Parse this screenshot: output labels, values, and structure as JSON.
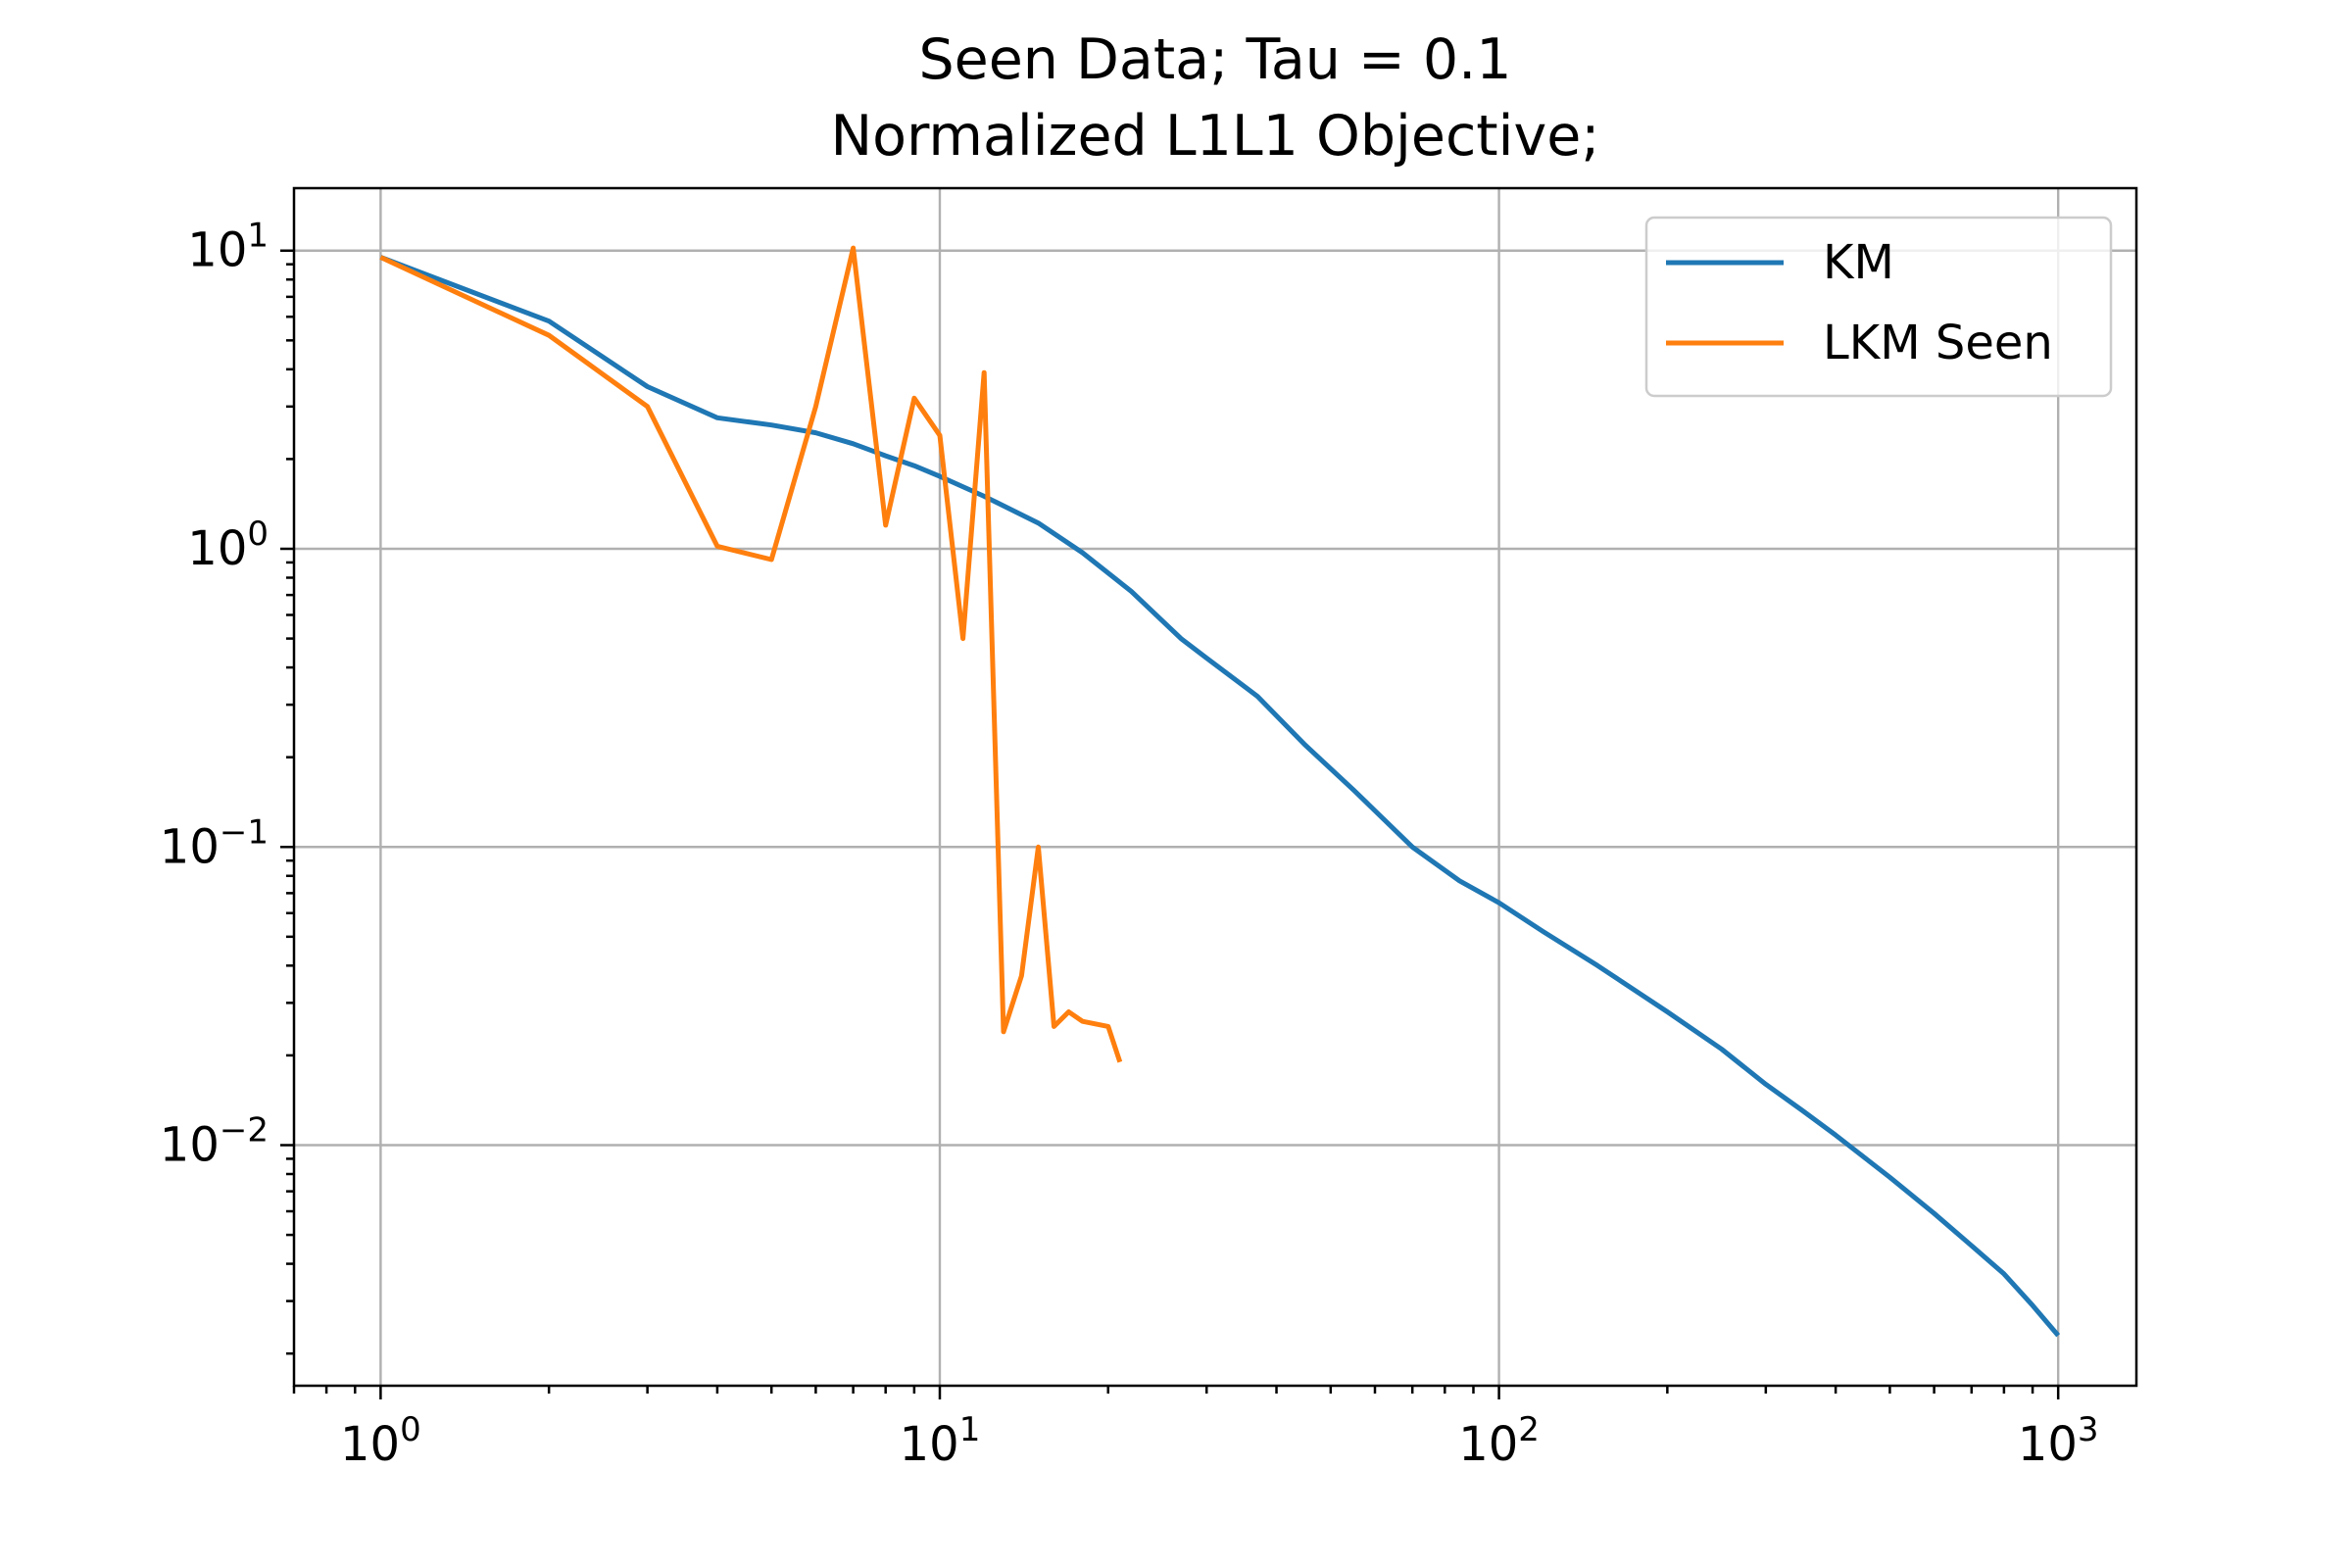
{
  "chart_data": {
    "type": "line",
    "title": "Seen Data; Tau = 0.1",
    "subtitle": "Normalized L1L1 Objective;",
    "xlabel": "",
    "ylabel": "",
    "xscale": "log",
    "yscale": "log",
    "xlim": [
      0.7,
      1380
    ],
    "ylim": [
      0.00156,
      16.2
    ],
    "grid": true,
    "legend_position": "upper-right",
    "x_ticks": [
      {
        "value": 1,
        "base": "10",
        "exp": "0"
      },
      {
        "value": 10,
        "base": "10",
        "exp": "1"
      },
      {
        "value": 100,
        "base": "10",
        "exp": "2"
      },
      {
        "value": 1000,
        "base": "10",
        "exp": "3"
      }
    ],
    "y_ticks": [
      {
        "value": 10,
        "base": "10",
        "exp": "1"
      },
      {
        "value": 1,
        "base": "10",
        "exp": "0"
      },
      {
        "value": 0.1,
        "base": "10",
        "exp": "−1"
      },
      {
        "value": 0.01,
        "base": "10",
        "exp": "−2"
      }
    ],
    "series": [
      {
        "name": "KM",
        "color": "#1f77b4",
        "x": [
          1,
          2,
          3,
          4,
          5,
          6,
          7,
          8,
          9,
          10,
          12,
          15,
          18,
          22,
          27,
          30,
          37,
          45,
          55,
          70,
          85,
          100,
          120,
          150,
          200,
          250,
          300,
          350,
          400,
          500,
          600,
          700,
          800,
          900,
          1000
        ],
        "y": [
          9.5,
          5.8,
          3.5,
          2.75,
          2.6,
          2.45,
          2.25,
          2.05,
          1.9,
          1.75,
          1.5,
          1.22,
          0.97,
          0.72,
          0.5,
          0.43,
          0.32,
          0.22,
          0.155,
          0.1,
          0.077,
          0.065,
          0.052,
          0.04,
          0.028,
          0.021,
          0.016,
          0.013,
          0.0108,
          0.0078,
          0.0059,
          0.0046,
          0.0037,
          0.0029,
          0.0023
        ]
      },
      {
        "name": "LKM Seen",
        "color": "#ff7f0e",
        "x": [
          1,
          2,
          3,
          4,
          5,
          6,
          7,
          8,
          9,
          10,
          11,
          12,
          13,
          14,
          15,
          16,
          17,
          18,
          20,
          21
        ],
        "y": [
          9.5,
          5.2,
          3.0,
          1.02,
          0.92,
          3.0,
          10.2,
          1.2,
          3.2,
          2.4,
          0.5,
          3.9,
          0.024,
          0.037,
          0.1,
          0.025,
          0.028,
          0.026,
          0.025,
          0.019
        ]
      }
    ]
  }
}
